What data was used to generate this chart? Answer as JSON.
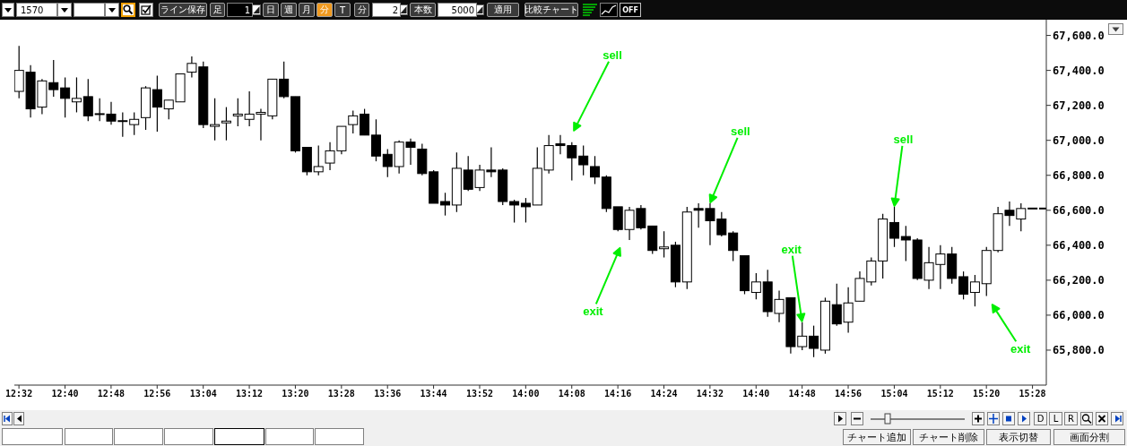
{
  "chart_data": {
    "type": "candlestick",
    "color": "#000000",
    "x": [
      12.5333,
      12.5667,
      12.6,
      12.6333,
      12.6667,
      12.7,
      12.7333,
      12.7667,
      12.8,
      12.8333,
      12.8667,
      12.9,
      12.9333,
      12.9667,
      13.0,
      13.0333,
      13.0667,
      13.1,
      13.1333,
      13.1667,
      13.2,
      13.2333,
      13.2667,
      13.3,
      13.3333,
      13.3667,
      13.4,
      13.4333,
      13.4667,
      13.5,
      13.5333,
      13.5667,
      13.6,
      13.6333,
      13.6667,
      13.7,
      13.7333,
      13.7667,
      13.8,
      13.8333,
      13.8667,
      13.9,
      13.9333,
      13.9667,
      14.0,
      14.0333,
      14.0667,
      14.1,
      14.1333,
      14.1667,
      14.2,
      14.2333,
      14.2667,
      14.3,
      14.3333,
      14.3667,
      14.4,
      14.4333,
      14.4667,
      14.5,
      14.5333,
      14.5667,
      14.6,
      14.6333,
      14.6667,
      14.7,
      14.7333,
      14.7667,
      14.8,
      14.8333,
      14.8667,
      14.9,
      14.9333,
      14.9667,
      15.0,
      15.0333,
      15.0667,
      15.1,
      15.1333,
      15.1667,
      15.2,
      15.2333,
      15.2667,
      15.3,
      15.3333,
      15.3667,
      15.4,
      15.4333,
      15.4667,
      15.5
    ],
    "ohlc": [
      [
        67280,
        67540,
        67240,
        67400
      ],
      [
        67390,
        67430,
        67130,
        67180
      ],
      [
        67190,
        67350,
        67150,
        67340
      ],
      [
        67330,
        67460,
        67250,
        67290
      ],
      [
        67300,
        67360,
        67130,
        67240
      ],
      [
        67220,
        67360,
        67160,
        67240
      ],
      [
        67250,
        67350,
        67110,
        67140
      ],
      [
        67150,
        67240,
        67110,
        67150
      ],
      [
        67150,
        67220,
        67090,
        67110
      ],
      [
        67110,
        67160,
        67020,
        67110
      ],
      [
        67090,
        67160,
        67030,
        67120
      ],
      [
        67130,
        67310,
        67060,
        67300
      ],
      [
        67290,
        67370,
        67050,
        67190
      ],
      [
        67180,
        67230,
        67120,
        67230
      ],
      [
        67220,
        67380,
        67220,
        67380
      ],
      [
        67390,
        67480,
        67360,
        67440
      ],
      [
        67420,
        67450,
        67070,
        67090
      ],
      [
        67080,
        67240,
        67000,
        67090
      ],
      [
        67100,
        67190,
        67000,
        67110
      ],
      [
        67140,
        67240,
        67080,
        67150
      ],
      [
        67120,
        67280,
        67080,
        67150
      ],
      [
        67150,
        67180,
        67000,
        67160
      ],
      [
        67140,
        67350,
        67120,
        67350
      ],
      [
        67350,
        67450,
        67240,
        67250
      ],
      [
        67250,
        67250,
        66930,
        66940
      ],
      [
        66960,
        66960,
        66800,
        66820
      ],
      [
        66820,
        66970,
        66800,
        66850
      ],
      [
        66870,
        66990,
        66830,
        66940
      ],
      [
        66940,
        67080,
        66920,
        67080
      ],
      [
        67090,
        67170,
        67040,
        67140
      ],
      [
        67150,
        67180,
        67030,
        67030
      ],
      [
        67030,
        67120,
        66880,
        66910
      ],
      [
        66920,
        66950,
        66790,
        66850
      ],
      [
        66850,
        67000,
        66810,
        66990
      ],
      [
        66990,
        67010,
        66860,
        66960
      ],
      [
        66950,
        66980,
        66800,
        66810
      ],
      [
        66820,
        66830,
        66640,
        66640
      ],
      [
        66650,
        66700,
        66570,
        66630
      ],
      [
        66630,
        66930,
        66590,
        66840
      ],
      [
        66830,
        66910,
        66710,
        66720
      ],
      [
        66730,
        66860,
        66710,
        66830
      ],
      [
        66830,
        66960,
        66790,
        66820
      ],
      [
        66830,
        66840,
        66630,
        66650
      ],
      [
        66650,
        66660,
        66530,
        66630
      ],
      [
        66640,
        66670,
        66530,
        66620
      ],
      [
        66630,
        66960,
        66630,
        66840
      ],
      [
        66830,
        67030,
        66810,
        66970
      ],
      [
        66980,
        67030,
        66920,
        66970
      ],
      [
        66970,
        66990,
        66770,
        66900
      ],
      [
        66910,
        66970,
        66800,
        66860
      ],
      [
        66850,
        66910,
        66750,
        66790
      ],
      [
        66790,
        66800,
        66590,
        66610
      ],
      [
        66620,
        66620,
        66480,
        66490
      ],
      [
        66490,
        66620,
        66430,
        66600
      ],
      [
        66610,
        66630,
        66490,
        66500
      ],
      [
        66510,
        66510,
        66350,
        66370
      ],
      [
        66380,
        66480,
        66330,
        66390
      ],
      [
        66400,
        66420,
        66160,
        66190
      ],
      [
        66190,
        66620,
        66150,
        66590
      ],
      [
        66610,
        66640,
        66500,
        66600
      ],
      [
        66610,
        66640,
        66400,
        66540
      ],
      [
        66550,
        66590,
        66450,
        66460
      ],
      [
        66470,
        66480,
        66310,
        66370
      ],
      [
        66340,
        66340,
        66120,
        66140
      ],
      [
        66130,
        66240,
        66090,
        66190
      ],
      [
        66190,
        66260,
        65990,
        66020
      ],
      [
        66010,
        66140,
        65960,
        66090
      ],
      [
        66100,
        66100,
        65780,
        65820
      ],
      [
        65820,
        65960,
        65800,
        65880
      ],
      [
        65880,
        65940,
        65760,
        65810
      ],
      [
        65800,
        66100,
        65780,
        66080
      ],
      [
        66060,
        66180,
        65940,
        65950
      ],
      [
        65960,
        66160,
        65900,
        66070
      ],
      [
        66080,
        66250,
        66080,
        66210
      ],
      [
        66190,
        66330,
        66170,
        66310
      ],
      [
        66310,
        66580,
        66210,
        66550
      ],
      [
        66530,
        66620,
        66390,
        66440
      ],
      [
        66450,
        66510,
        66310,
        66430
      ],
      [
        66430,
        66440,
        66200,
        66210
      ],
      [
        66200,
        66390,
        66150,
        66300
      ],
      [
        66290,
        66400,
        66150,
        66350
      ],
      [
        66350,
        66390,
        66180,
        66210
      ],
      [
        66220,
        66250,
        66090,
        66120
      ],
      [
        66130,
        66230,
        66050,
        66190
      ],
      [
        66180,
        66390,
        66110,
        66370
      ],
      [
        66370,
        66620,
        66360,
        66580
      ],
      [
        66600,
        66650,
        66510,
        66570
      ],
      [
        66550,
        66640,
        66480,
        66610
      ],
      [
        66610,
        66610,
        66610,
        66610
      ],
      [
        66610,
        66610,
        66610,
        66610
      ]
    ],
    "xlim": [
      12.52,
      15.5067
    ],
    "xticks": [
      {
        "value": 12.5333,
        "label": "12:32"
      },
      {
        "value": 12.6667,
        "label": "12:40"
      },
      {
        "value": 12.8,
        "label": "12:48"
      },
      {
        "value": 12.9333,
        "label": "12:56"
      },
      {
        "value": 13.0667,
        "label": "13:04"
      },
      {
        "value": 13.2,
        "label": "13:12"
      },
      {
        "value": 13.3333,
        "label": "13:20"
      },
      {
        "value": 13.4667,
        "label": "13:28"
      },
      {
        "value": 13.6,
        "label": "13:36"
      },
      {
        "value": 13.7333,
        "label": "13:44"
      },
      {
        "value": 13.8667,
        "label": "13:52"
      },
      {
        "value": 14.0,
        "label": "14:00"
      },
      {
        "value": 14.1333,
        "label": "14:08"
      },
      {
        "value": 14.2667,
        "label": "14:16"
      },
      {
        "value": 14.4,
        "label": "14:24"
      },
      {
        "value": 14.5333,
        "label": "14:32"
      },
      {
        "value": 14.6667,
        "label": "14:40"
      },
      {
        "value": 14.8,
        "label": "14:48"
      },
      {
        "value": 14.9333,
        "label": "14:56"
      },
      {
        "value": 15.0667,
        "label": "15:04"
      },
      {
        "value": 15.2,
        "label": "15:12"
      },
      {
        "value": 15.3333,
        "label": "15:20"
      },
      {
        "value": 15.4667,
        "label": "15:28"
      }
    ],
    "ylim": [
      65600,
      67690
    ],
    "yticks": [
      {
        "value": 65800,
        "label": "65,800.0"
      },
      {
        "value": 66000,
        "label": "66,000.0"
      },
      {
        "value": 66200,
        "label": "66,200.0"
      },
      {
        "value": 66400,
        "label": "66,400.0"
      },
      {
        "value": 66600,
        "label": "66,600.0"
      },
      {
        "value": 66800,
        "label": "66,800.0"
      },
      {
        "value": 67000,
        "label": "67,000.0"
      },
      {
        "value": 67200,
        "label": "67,200.0"
      },
      {
        "value": 67400,
        "label": "67,400.0"
      },
      {
        "value": 67600,
        "label": "67,600.0"
      }
    ],
    "annotations": [
      {
        "text": "sell",
        "x": 14.5333,
        "y": 66640
      },
      {
        "text": "exit",
        "x": 14.8,
        "y": 65960
      },
      {
        "text": "sell",
        "x": 15.0667,
        "y": 66620
      },
      "sell",
      "exit",
      "exit",
      "1570",
      "ライン保存",
      "足",
      "1",
      "日",
      "週",
      "月",
      "分",
      "T",
      "分",
      "2",
      "本数",
      "5000",
      "適用",
      "比較チャート",
      "OFF",
      "D",
      "L",
      "R",
      "チャート追加",
      "チャート削除",
      "表示切替",
      "画面分割"
    ]
  }
}
